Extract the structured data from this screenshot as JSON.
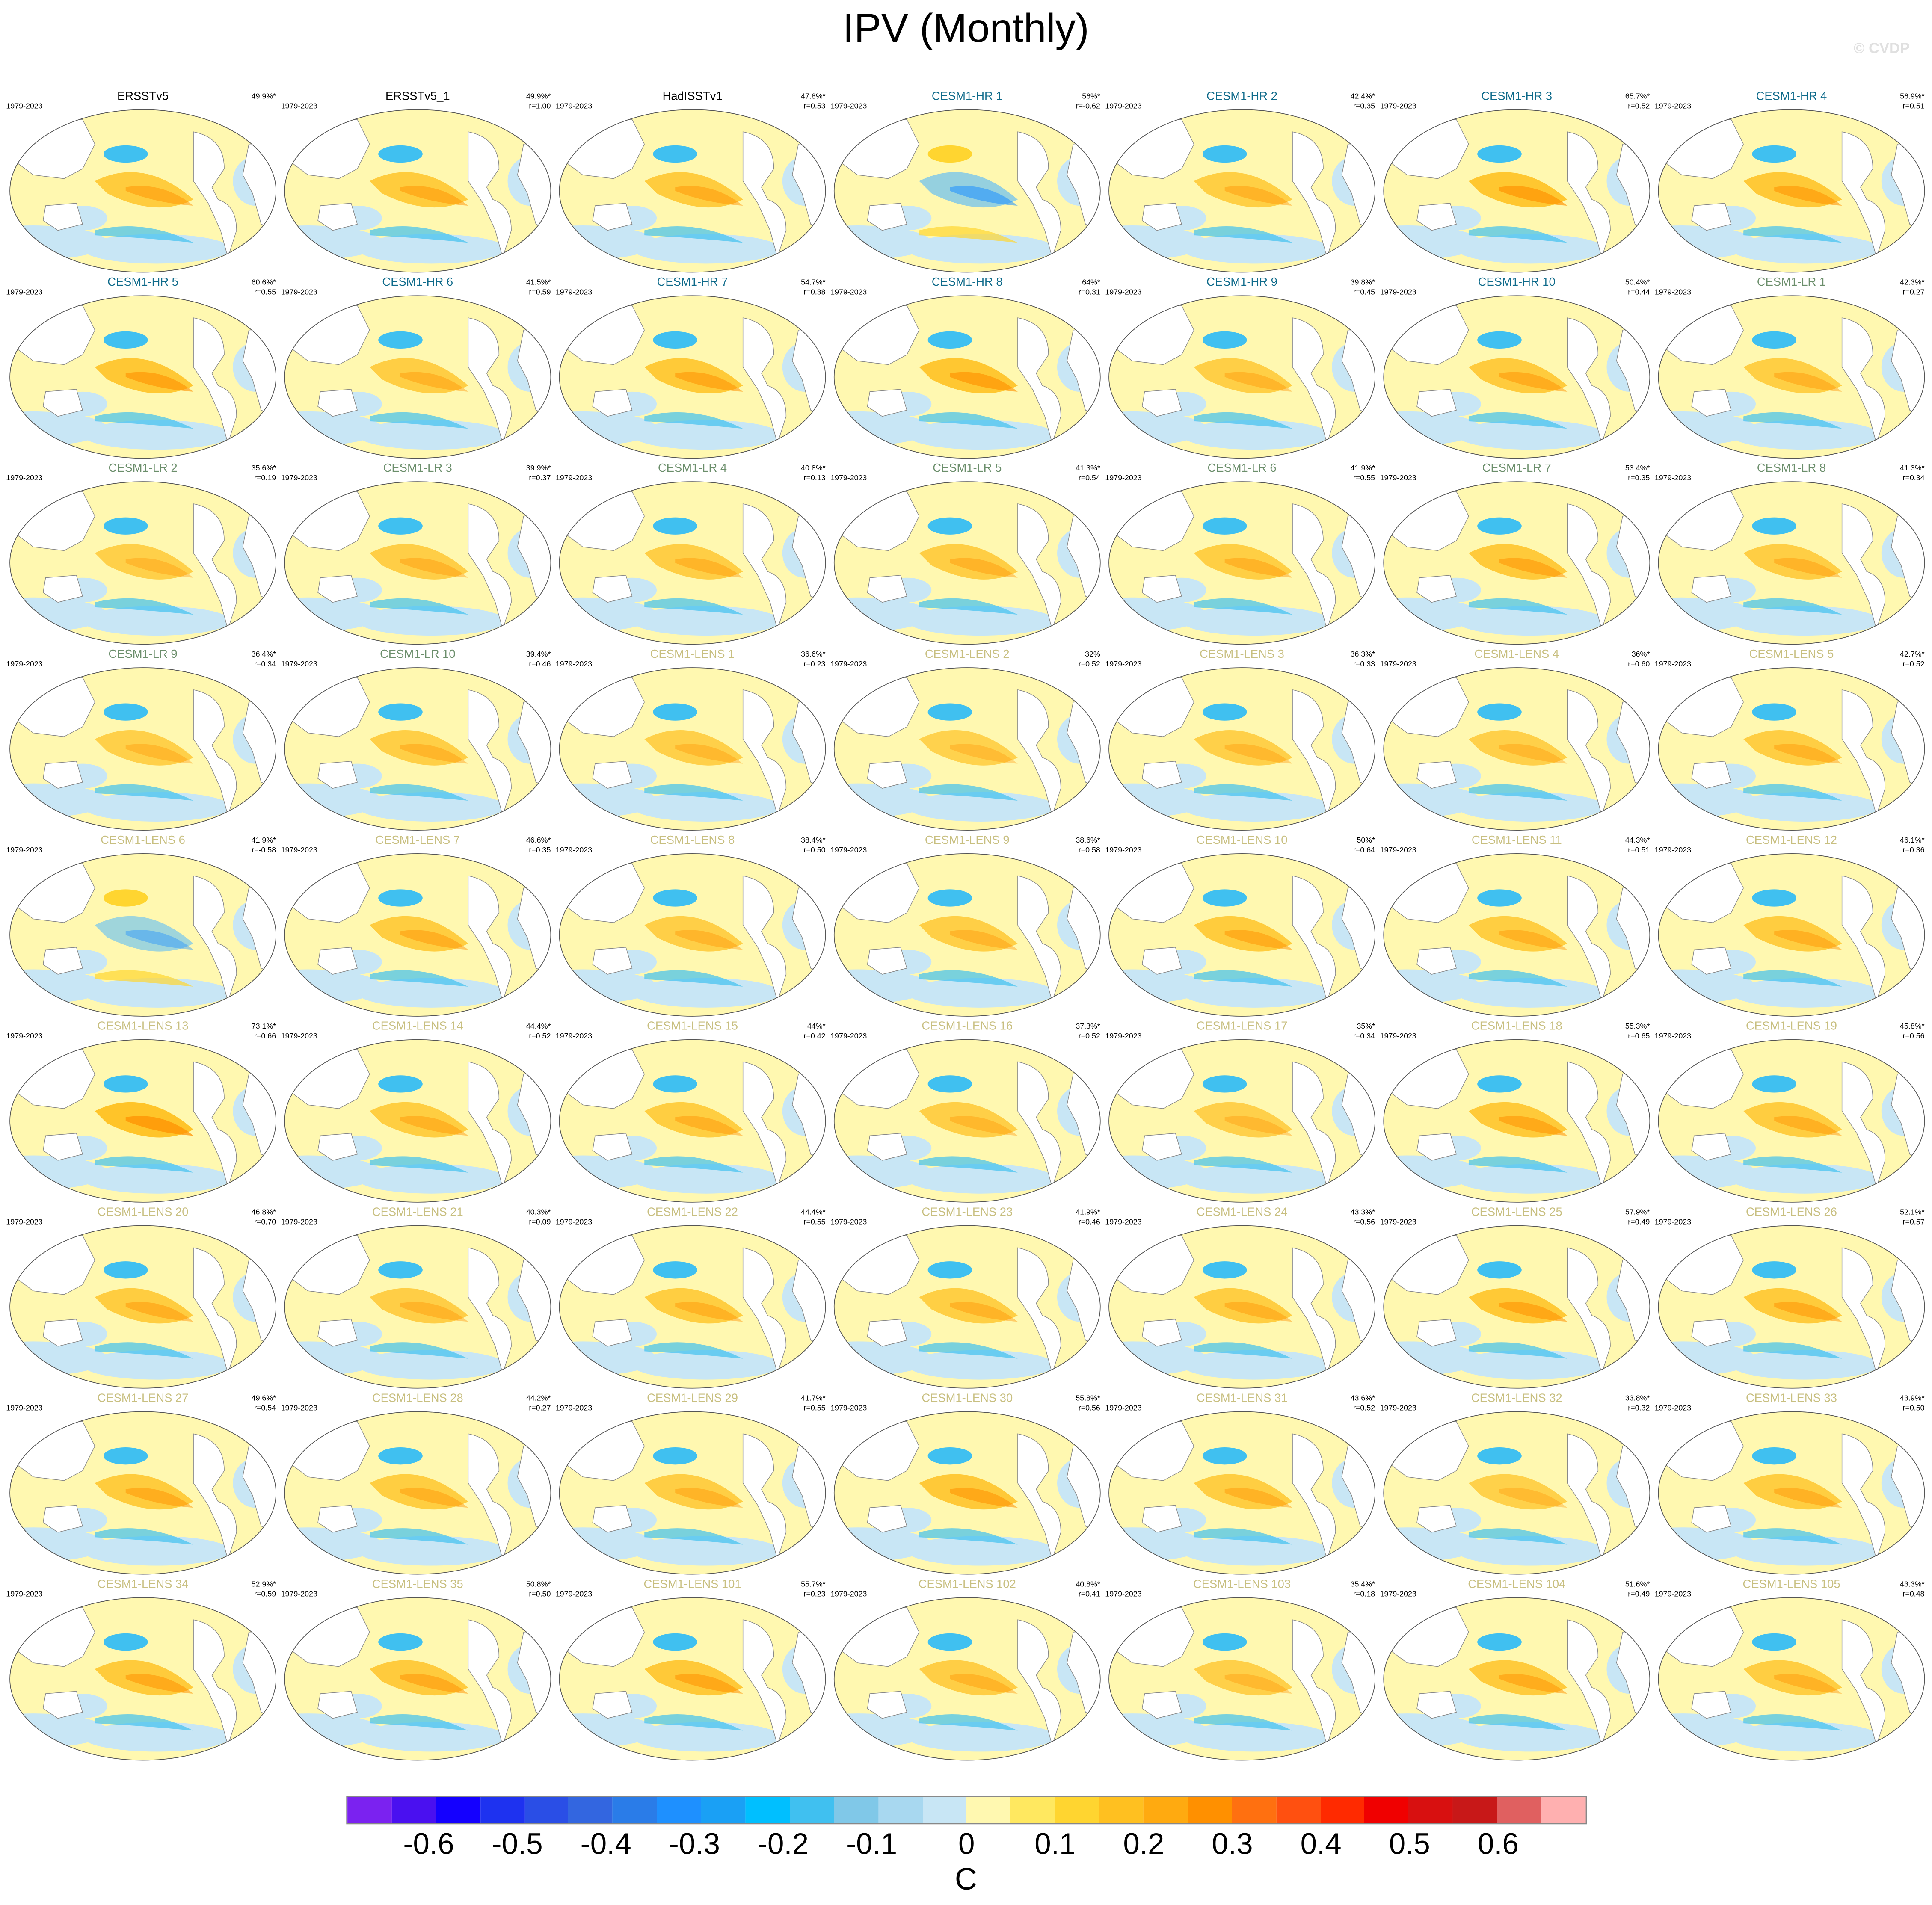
{
  "title": "IPV (Monthly)",
  "watermark": "© CVDP",
  "period": "1979-2023",
  "group_colors": {
    "obs": "#000000",
    "hr": "#0e6a8a",
    "lr": "#6b8e6b",
    "lens": "#c8bf80"
  },
  "panels": [
    {
      "name": "ERSSTv5",
      "group": "obs",
      "pct": "49.9%*",
      "r": ""
    },
    {
      "name": "ERSSTv5_1",
      "group": "obs",
      "pct": "49.9%*",
      "r": "r=1.00"
    },
    {
      "name": "HadISSTv1",
      "group": "obs",
      "pct": "47.8%*",
      "r": "r=0.53"
    },
    {
      "name": "CESM1-HR 1",
      "group": "hr",
      "pct": "56%*",
      "r": "r=-0.62"
    },
    {
      "name": "CESM1-HR 2",
      "group": "hr",
      "pct": "42.4%*",
      "r": "r=0.35"
    },
    {
      "name": "CESM1-HR 3",
      "group": "hr",
      "pct": "65.7%*",
      "r": "r=0.52"
    },
    {
      "name": "CESM1-HR 4",
      "group": "hr",
      "pct": "56.9%*",
      "r": "r=0.51"
    },
    {
      "name": "CESM1-HR 5",
      "group": "hr",
      "pct": "60.6%*",
      "r": "r=0.55"
    },
    {
      "name": "CESM1-HR 6",
      "group": "hr",
      "pct": "41.5%*",
      "r": "r=0.59"
    },
    {
      "name": "CESM1-HR 7",
      "group": "hr",
      "pct": "54.7%*",
      "r": "r=0.38"
    },
    {
      "name": "CESM1-HR 8",
      "group": "hr",
      "pct": "64%*",
      "r": "r=0.31"
    },
    {
      "name": "CESM1-HR 9",
      "group": "hr",
      "pct": "39.8%*",
      "r": "r=0.45"
    },
    {
      "name": "CESM1-HR 10",
      "group": "hr",
      "pct": "50.4%*",
      "r": "r=0.44"
    },
    {
      "name": "CESM1-LR 1",
      "group": "lr",
      "pct": "42.3%*",
      "r": "r=0.27"
    },
    {
      "name": "CESM1-LR 2",
      "group": "lr",
      "pct": "35.6%*",
      "r": "r=0.19"
    },
    {
      "name": "CESM1-LR 3",
      "group": "lr",
      "pct": "39.9%*",
      "r": "r=0.37"
    },
    {
      "name": "CESM1-LR 4",
      "group": "lr",
      "pct": "40.8%*",
      "r": "r=0.13"
    },
    {
      "name": "CESM1-LR 5",
      "group": "lr",
      "pct": "41.3%*",
      "r": "r=0.54"
    },
    {
      "name": "CESM1-LR 6",
      "group": "lr",
      "pct": "41.9%*",
      "r": "r=0.55"
    },
    {
      "name": "CESM1-LR 7",
      "group": "lr",
      "pct": "53.4%*",
      "r": "r=0.35"
    },
    {
      "name": "CESM1-LR 8",
      "group": "lr",
      "pct": "41.3%*",
      "r": "r=0.34"
    },
    {
      "name": "CESM1-LR 9",
      "group": "lr",
      "pct": "36.4%*",
      "r": "r=0.34"
    },
    {
      "name": "CESM1-LR 10",
      "group": "lr",
      "pct": "39.4%*",
      "r": "r=0.46"
    },
    {
      "name": "CESM1-LENS 1",
      "group": "lens",
      "pct": "36.6%*",
      "r": "r=0.23"
    },
    {
      "name": "CESM1-LENS 2",
      "group": "lens",
      "pct": "32%",
      "r": "r=0.52"
    },
    {
      "name": "CESM1-LENS 3",
      "group": "lens",
      "pct": "36.3%*",
      "r": "r=0.33"
    },
    {
      "name": "CESM1-LENS 4",
      "group": "lens",
      "pct": "36%*",
      "r": "r=0.60"
    },
    {
      "name": "CESM1-LENS 5",
      "group": "lens",
      "pct": "42.7%*",
      "r": "r=0.52"
    },
    {
      "name": "CESM1-LENS 6",
      "group": "lens",
      "pct": "41.9%*",
      "r": "r=-0.58"
    },
    {
      "name": "CESM1-LENS 7",
      "group": "lens",
      "pct": "46.6%*",
      "r": "r=0.35"
    },
    {
      "name": "CESM1-LENS 8",
      "group": "lens",
      "pct": "38.4%*",
      "r": "r=0.50"
    },
    {
      "name": "CESM1-LENS 9",
      "group": "lens",
      "pct": "38.6%*",
      "r": "r=0.58"
    },
    {
      "name": "CESM1-LENS 10",
      "group": "lens",
      "pct": "50%*",
      "r": "r=0.64"
    },
    {
      "name": "CESM1-LENS 11",
      "group": "lens",
      "pct": "44.3%*",
      "r": "r=0.51"
    },
    {
      "name": "CESM1-LENS 12",
      "group": "lens",
      "pct": "46.1%*",
      "r": "r=0.36"
    },
    {
      "name": "CESM1-LENS 13",
      "group": "lens",
      "pct": "73.1%*",
      "r": "r=0.66"
    },
    {
      "name": "CESM1-LENS 14",
      "group": "lens",
      "pct": "44.4%*",
      "r": "r=0.52"
    },
    {
      "name": "CESM1-LENS 15",
      "group": "lens",
      "pct": "44%*",
      "r": "r=0.42"
    },
    {
      "name": "CESM1-LENS 16",
      "group": "lens",
      "pct": "37.3%*",
      "r": "r=0.52"
    },
    {
      "name": "CESM1-LENS 17",
      "group": "lens",
      "pct": "35%*",
      "r": "r=0.34"
    },
    {
      "name": "CESM1-LENS 18",
      "group": "lens",
      "pct": "55.3%*",
      "r": "r=0.65"
    },
    {
      "name": "CESM1-LENS 19",
      "group": "lens",
      "pct": "45.8%*",
      "r": "r=0.56"
    },
    {
      "name": "CESM1-LENS 20",
      "group": "lens",
      "pct": "46.8%*",
      "r": "r=0.70"
    },
    {
      "name": "CESM1-LENS 21",
      "group": "lens",
      "pct": "40.3%*",
      "r": "r=0.09"
    },
    {
      "name": "CESM1-LENS 22",
      "group": "lens",
      "pct": "44.4%*",
      "r": "r=0.55"
    },
    {
      "name": "CESM1-LENS 23",
      "group": "lens",
      "pct": "41.9%*",
      "r": "r=0.46"
    },
    {
      "name": "CESM1-LENS 24",
      "group": "lens",
      "pct": "43.3%*",
      "r": "r=0.56"
    },
    {
      "name": "CESM1-LENS 25",
      "group": "lens",
      "pct": "57.9%*",
      "r": "r=0.49"
    },
    {
      "name": "CESM1-LENS 26",
      "group": "lens",
      "pct": "52.1%*",
      "r": "r=0.57"
    },
    {
      "name": "CESM1-LENS 27",
      "group": "lens",
      "pct": "49.6%*",
      "r": "r=0.54"
    },
    {
      "name": "CESM1-LENS 28",
      "group": "lens",
      "pct": "44.2%*",
      "r": "r=0.27"
    },
    {
      "name": "CESM1-LENS 29",
      "group": "lens",
      "pct": "41.7%*",
      "r": "r=0.55"
    },
    {
      "name": "CESM1-LENS 30",
      "group": "lens",
      "pct": "55.8%*",
      "r": "r=0.56"
    },
    {
      "name": "CESM1-LENS 31",
      "group": "lens",
      "pct": "43.6%*",
      "r": "r=0.52"
    },
    {
      "name": "CESM1-LENS 32",
      "group": "lens",
      "pct": "33.8%*",
      "r": "r=0.32"
    },
    {
      "name": "CESM1-LENS 33",
      "group": "lens",
      "pct": "43.9%*",
      "r": "r=0.50"
    },
    {
      "name": "CESM1-LENS 34",
      "group": "lens",
      "pct": "52.9%*",
      "r": "r=0.59"
    },
    {
      "name": "CESM1-LENS 35",
      "group": "lens",
      "pct": "50.8%*",
      "r": "r=0.50"
    },
    {
      "name": "CESM1-LENS 101",
      "group": "lens",
      "pct": "55.7%*",
      "r": "r=0.23"
    },
    {
      "name": "CESM1-LENS 102",
      "group": "lens",
      "pct": "40.8%*",
      "r": "r=0.41"
    },
    {
      "name": "CESM1-LENS 103",
      "group": "lens",
      "pct": "35.4%*",
      "r": "r=0.18"
    },
    {
      "name": "CESM1-LENS 104",
      "group": "lens",
      "pct": "51.6%*",
      "r": "r=0.49"
    },
    {
      "name": "CESM1-LENS 105",
      "group": "lens",
      "pct": "43.3%*",
      "r": "r=0.48"
    }
  ],
  "chart_data": {
    "type": "heatmap",
    "title": "IPV (Monthly)",
    "colorbar": {
      "unit": "C",
      "tick_labels": [
        "-0.6",
        "-0.5",
        "-0.4",
        "-0.3",
        "-0.2",
        "-0.1",
        "0",
        "0.1",
        "0.2",
        "0.3",
        "0.4",
        "0.5",
        "0.6"
      ],
      "range": [
        -0.7,
        0.7
      ],
      "colors": [
        "#7b22f0",
        "#4a10f0",
        "#1400ff",
        "#1e32f0",
        "#2a4ee6",
        "#3366e0",
        "#2a7ce8",
        "#1e90ff",
        "#1aa0f5",
        "#00bfff",
        "#40c0f0",
        "#80c8e8",
        "#a8d8f0",
        "#c8e6f5",
        "#fff8b0",
        "#ffe860",
        "#ffd530",
        "#ffc020",
        "#ffaa10",
        "#ff9000",
        "#ff7010",
        "#ff5010",
        "#ff2a00",
        "#f00000",
        "#d81010",
        "#c81818",
        "#e06060",
        "#ffb0b0"
      ]
    }
  }
}
